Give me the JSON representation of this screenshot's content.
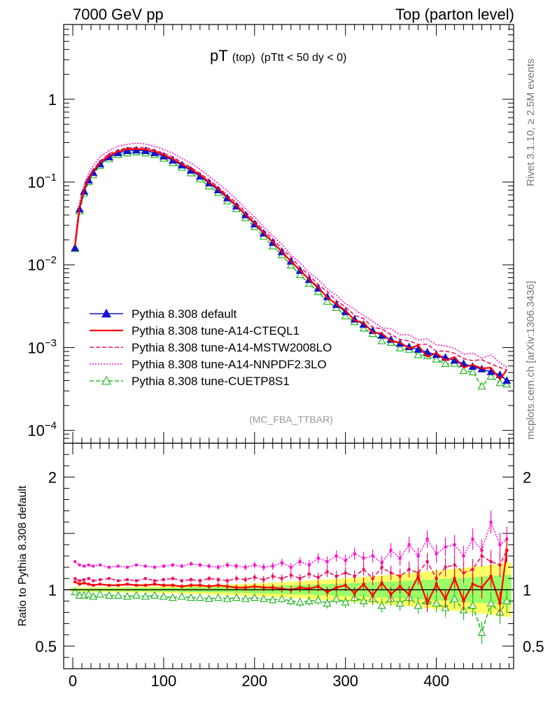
{
  "header": {
    "left": "7000 GeV pp",
    "right": "Top (parton level)"
  },
  "side_labels": {
    "rivet": "Rivet 3.1.10, ≥ 2.5M events",
    "mcplots": "mcplots.cern.ch [arXiv:1306.3436]"
  },
  "chart_data": [
    {
      "type": "line",
      "title": "pT",
      "title_parts": [
        "pT",
        "(top)",
        "(pTtt < 50 dy < 0)"
      ],
      "watermark": "(MC_FBA_TTBAR)",
      "yscale": "log",
      "xlim": [
        -10,
        485
      ],
      "ylim": [
        7e-05,
        8
      ],
      "ytick_labels": [
        {
          "value": 1,
          "base": "1",
          "exp": ""
        },
        {
          "value": 0.1,
          "base": "10",
          "exp": "−1"
        },
        {
          "value": 0.01,
          "base": "10",
          "exp": "−2"
        },
        {
          "value": 0.001,
          "base": "10",
          "exp": "−3"
        },
        {
          "value": 0.0001,
          "base": "10",
          "exp": "−4"
        }
      ],
      "legend_position": "bottom-left",
      "reference_shape": {
        "x": [
          2.5,
          7.5,
          12.5,
          17.5,
          22.5,
          30,
          40,
          50,
          60,
          70,
          80,
          90,
          100,
          110,
          120,
          130,
          140,
          150,
          160,
          170,
          180,
          190,
          200,
          210,
          220,
          230,
          240,
          250,
          260,
          270,
          280,
          290,
          300,
          310,
          320,
          330,
          340,
          350,
          360,
          370,
          380,
          390,
          400,
          410,
          420,
          430,
          440,
          450,
          460,
          470,
          477.5
        ],
        "y": [
          0.016,
          0.047,
          0.077,
          0.105,
          0.13,
          0.165,
          0.2,
          0.225,
          0.238,
          0.242,
          0.238,
          0.225,
          0.205,
          0.183,
          0.16,
          0.138,
          0.117,
          0.097,
          0.08,
          0.064,
          0.051,
          0.04,
          0.031,
          0.024,
          0.0185,
          0.0143,
          0.011,
          0.0085,
          0.0066,
          0.0052,
          0.0041,
          0.0033,
          0.0027,
          0.0022,
          0.0019,
          0.0016,
          0.0014,
          0.00125,
          0.00112,
          0.00102,
          0.00095,
          0.00088,
          0.00082,
          0.00076,
          0.0007,
          0.00064,
          0.00059,
          0.00055,
          0.00051,
          0.00047,
          0.0004
        ]
      },
      "series": [
        {
          "name": "Pythia 8.308 default",
          "color": "#1515cc",
          "style": "solid",
          "marker": "triangle-filled",
          "scale": 1.0
        },
        {
          "name": "Pythia 8.308 tune-A14-CTEQL1",
          "color": "#ff0000",
          "style": "solid",
          "marker": "none",
          "scale": 1.04
        },
        {
          "name": "Pythia 8.308 tune-A14-MSTW2008LO",
          "color": "#ee1166",
          "style": "dashed",
          "marker": "none",
          "scale": 1.11
        },
        {
          "name": "Pythia 8.308 tune-A14-NNPDF2.3LO",
          "color": "#ff11cc",
          "style": "dotted",
          "marker": "none",
          "scale": 1.18
        },
        {
          "name": "Pythia 8.308 tune-CUETP8S1",
          "color": "#22bb22",
          "style": "dashed",
          "marker": "triangle-open",
          "scale": 0.92
        }
      ]
    },
    {
      "type": "line",
      "ylabel": "Ratio to Pythia 8.308 default",
      "xlim": [
        -10,
        485
      ],
      "ylim": [
        0.3,
        2.3
      ],
      "yticks": [
        0.5,
        1,
        2
      ],
      "ytick_labels": [
        "0.5",
        "1",
        "2"
      ],
      "xticks": [
        0,
        100,
        200,
        300,
        400
      ],
      "xtick_labels": [
        "0",
        "100",
        "200",
        "300",
        "400"
      ],
      "band_colors": {
        "inner": "#99ff66",
        "outer": "#ffff66"
      },
      "ratios": {
        "x": [
          2.5,
          7.5,
          12.5,
          17.5,
          22.5,
          30,
          40,
          50,
          60,
          70,
          80,
          90,
          100,
          110,
          120,
          130,
          140,
          150,
          160,
          170,
          180,
          190,
          200,
          210,
          220,
          230,
          240,
          250,
          260,
          270,
          280,
          290,
          300,
          310,
          320,
          330,
          340,
          350,
          360,
          370,
          380,
          390,
          400,
          410,
          420,
          430,
          440,
          450,
          460,
          470,
          477.5
        ],
        "default": [
          1,
          1,
          1,
          1,
          1,
          1,
          1,
          1,
          1,
          1,
          1,
          1,
          1,
          1,
          1,
          1,
          1,
          1,
          1,
          1,
          1,
          1,
          1,
          1,
          1,
          1,
          1,
          1,
          1,
          1,
          1,
          1,
          1,
          1,
          1,
          1,
          1,
          1,
          1,
          1,
          1,
          1,
          1,
          1,
          1,
          1,
          1,
          1,
          1,
          1,
          1
        ],
        "cteql1": [
          1.07,
          1.05,
          1.06,
          1.05,
          1.04,
          1.05,
          1.04,
          1.04,
          1.05,
          1.04,
          1.04,
          1.05,
          1.04,
          1.04,
          1.03,
          1.04,
          1.04,
          1.03,
          1.04,
          1.03,
          1.02,
          1.02,
          1.03,
          1.02,
          1.02,
          1.01,
          1.0,
          1.02,
          1.01,
          1.03,
          0.98,
          1.02,
          1.04,
          0.97,
          1.05,
          0.95,
          1.06,
          0.96,
          1.03,
          0.96,
          1.12,
          0.88,
          1.05,
          0.92,
          1.1,
          0.9,
          1.05,
          1.02,
          1.12,
          0.88,
          1.35
        ],
        "mstw": [
          1.1,
          1.08,
          1.09,
          1.1,
          1.08,
          1.09,
          1.1,
          1.08,
          1.09,
          1.08,
          1.1,
          1.08,
          1.09,
          1.1,
          1.08,
          1.09,
          1.08,
          1.1,
          1.09,
          1.08,
          1.1,
          1.09,
          1.11,
          1.09,
          1.12,
          1.1,
          1.13,
          1.1,
          1.14,
          1.11,
          1.16,
          1.12,
          1.15,
          1.12,
          1.18,
          1.1,
          1.2,
          1.15,
          1.12,
          1.18,
          1.15,
          1.25,
          1.1,
          1.2,
          1.22,
          1.15,
          1.18,
          1.3,
          1.25,
          1.22,
          1.35
        ],
        "nnpdf": [
          1.25,
          1.22,
          1.21,
          1.22,
          1.21,
          1.22,
          1.2,
          1.21,
          1.2,
          1.22,
          1.21,
          1.2,
          1.21,
          1.22,
          1.21,
          1.23,
          1.22,
          1.21,
          1.2,
          1.22,
          1.21,
          1.2,
          1.22,
          1.2,
          1.21,
          1.24,
          1.2,
          1.25,
          1.22,
          1.28,
          1.25,
          1.3,
          1.26,
          1.32,
          1.28,
          1.3,
          1.24,
          1.35,
          1.28,
          1.4,
          1.3,
          1.45,
          1.32,
          1.38,
          1.4,
          1.3,
          1.45,
          1.35,
          1.6,
          1.4,
          1.45
        ],
        "cuetp8s1": [
          0.98,
          0.95,
          0.95,
          0.96,
          0.94,
          0.96,
          0.95,
          0.95,
          0.94,
          0.95,
          0.94,
          0.95,
          0.94,
          0.93,
          0.94,
          0.93,
          0.93,
          0.92,
          0.93,
          0.92,
          0.93,
          0.92,
          0.93,
          0.92,
          0.91,
          0.92,
          0.9,
          0.89,
          0.9,
          0.91,
          0.88,
          0.92,
          0.89,
          0.93,
          0.9,
          0.92,
          0.86,
          0.92,
          0.88,
          0.93,
          0.86,
          0.9,
          0.88,
          0.84,
          0.92,
          0.82,
          0.86,
          0.62,
          0.88,
          0.8,
          0.9
        ]
      }
    }
  ]
}
